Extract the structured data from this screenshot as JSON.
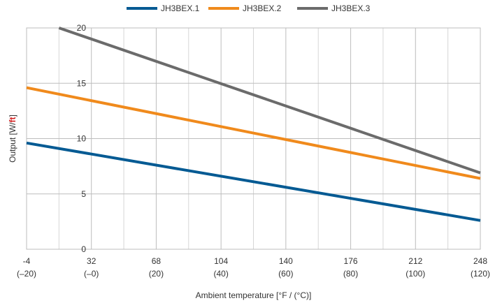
{
  "chart_data": {
    "type": "line",
    "xlabel": "Ambient temperature [°F / (°C)]",
    "ylabel": {
      "prefix": "Output [W/",
      "unit": "ft",
      "suffix": "]"
    },
    "xlim": [
      -4,
      248
    ],
    "ylim": [
      0,
      20
    ],
    "xticks": [
      {
        "value": -4,
        "f": "-4",
        "c": "(–20)"
      },
      {
        "value": 32,
        "f": "32",
        "c": "(–0)"
      },
      {
        "value": 68,
        "f": "68",
        "c": "(20)"
      },
      {
        "value": 104,
        "f": "104",
        "c": "(40)"
      },
      {
        "value": 140,
        "f": "140",
        "c": "(60)"
      },
      {
        "value": 176,
        "f": "176",
        "c": "(80)"
      },
      {
        "value": 212,
        "f": "212",
        "c": "(100)"
      },
      {
        "value": 248,
        "f": "248",
        "c": "(120)"
      }
    ],
    "yticks": [
      0,
      5,
      10,
      15,
      20
    ],
    "x_minor_gridlines": [
      14,
      50,
      86,
      122,
      158,
      194,
      230
    ],
    "grid": true,
    "legend_position": "top-center",
    "series": [
      {
        "name": "JH3BEX.1",
        "color": "#035a93",
        "x": [
          -4,
          248
        ],
        "y": [
          9.6,
          2.6
        ]
      },
      {
        "name": "JH3BEX.2",
        "color": "#f08a1c",
        "x": [
          -4,
          248
        ],
        "y": [
          14.6,
          6.4
        ]
      },
      {
        "name": "JH3BEX.3",
        "color": "#6b6b6b",
        "x": [
          14,
          248
        ],
        "y": [
          20.0,
          6.9
        ]
      }
    ]
  }
}
